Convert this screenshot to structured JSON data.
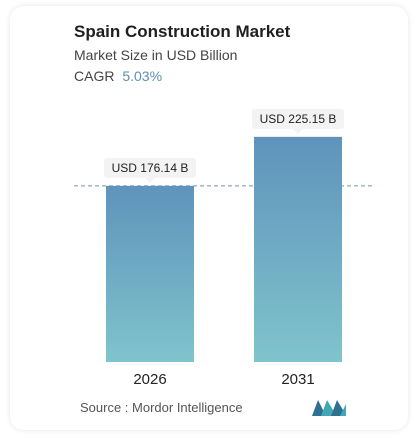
{
  "header": {
    "title": "Spain Construction Market",
    "subtitle": "Market Size in USD Billion",
    "cagr_label": "CAGR",
    "cagr_value": "5.03%"
  },
  "footer": {
    "source_text": "Source : Mordor Intelligence"
  },
  "colors": {
    "bar_top": "#5f93bc",
    "bar_bottom": "#7fc4cc",
    "accent": "#5b8fb0"
  },
  "chart_data": {
    "type": "bar",
    "categories": [
      "2026",
      "2031"
    ],
    "values": [
      176.14,
      225.15
    ],
    "data_labels": [
      "USD 176.14 B",
      "USD 225.15 B"
    ],
    "reference_line_value": 176.14,
    "ylim": [
      0,
      230
    ],
    "grid": false,
    "title": "Spain Construction Market",
    "xlabel": "",
    "ylabel": ""
  }
}
